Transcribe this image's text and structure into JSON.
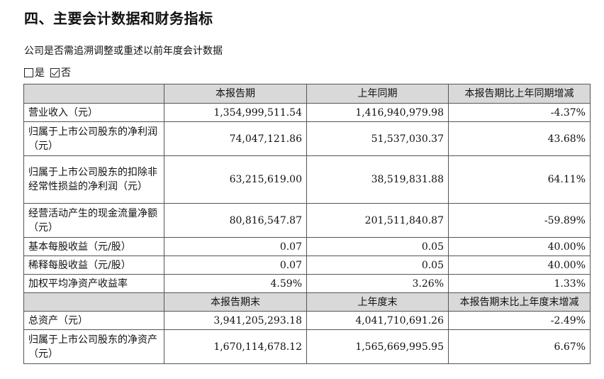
{
  "section_title": "四、主要会计数据和财务指标",
  "subtitle": "公司是否需追溯调整或重述以前年度会计数据",
  "options": [
    {
      "label": "是",
      "checked": false
    },
    {
      "label": "否",
      "checked": true
    }
  ],
  "header1": [
    "",
    "本报告期",
    "上年同期",
    "本报告期比上年同期增减"
  ],
  "rows1": [
    {
      "label": "营业收入（元）",
      "values": [
        "1,354,999,511.54",
        "1,416,940,979.98",
        "-4.37%"
      ]
    },
    {
      "label": "归属于上市公司股东的净利润（元）",
      "values": [
        "74,047,121.86",
        "51,537,030.37",
        "43.68%"
      ]
    },
    {
      "label": "归属于上市公司股东的扣除非经常性损益的净利润（元）",
      "values": [
        "63,215,619.00",
        "38,519,831.88",
        "64.11%"
      ]
    },
    {
      "label": "经营活动产生的现金流量净额（元）",
      "values": [
        "80,816,547.87",
        "201,511,840.87",
        "-59.89%"
      ]
    },
    {
      "label": "基本每股收益（元/股）",
      "values": [
        "0.07",
        "0.05",
        "40.00%"
      ]
    },
    {
      "label": "稀释每股收益（元/股）",
      "values": [
        "0.07",
        "0.05",
        "40.00%"
      ]
    },
    {
      "label": "加权平均净资产收益率",
      "values": [
        "4.59%",
        "3.26%",
        "1.33%"
      ]
    }
  ],
  "header2": [
    "",
    "本报告期末",
    "上年度末",
    "本报告期末比上年度末增减"
  ],
  "rows2": [
    {
      "label": "总资产（元）",
      "values": [
        "3,941,205,293.18",
        "4,041,710,691.26",
        "-2.49%"
      ]
    },
    {
      "label": "归属于上市公司股东的净资产（元）",
      "values": [
        "1,670,114,678.12",
        "1,565,669,995.95",
        "6.67%"
      ]
    }
  ]
}
